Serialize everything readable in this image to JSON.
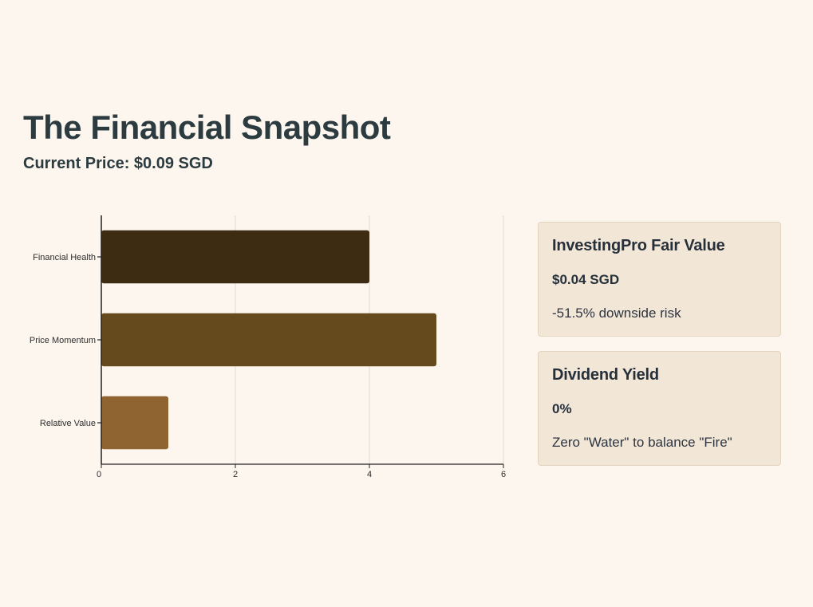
{
  "header": {
    "title": "The Financial Snapshot",
    "subtitle": "Current Price: $0.09 SGD"
  },
  "chart_data": {
    "type": "bar",
    "orientation": "horizontal",
    "categories": [
      "Financial Health",
      "Price Momentum",
      "Relative Value"
    ],
    "values": [
      4,
      5,
      1
    ],
    "colors": [
      "#3d2b12",
      "#654a1e",
      "#8f6430"
    ],
    "xlim": [
      0,
      6
    ],
    "xticks": [
      0,
      2,
      4,
      6
    ],
    "grid": true,
    "title": "",
    "xlabel": "",
    "ylabel": ""
  },
  "cards": [
    {
      "heading": "InvestingPro Fair Value",
      "value": "$0.04 SGD",
      "note": "-51.5% downside risk"
    },
    {
      "heading": "Dividend Yield",
      "value": "0%",
      "note": "Zero \"Water\" to balance \"Fire\""
    }
  ]
}
